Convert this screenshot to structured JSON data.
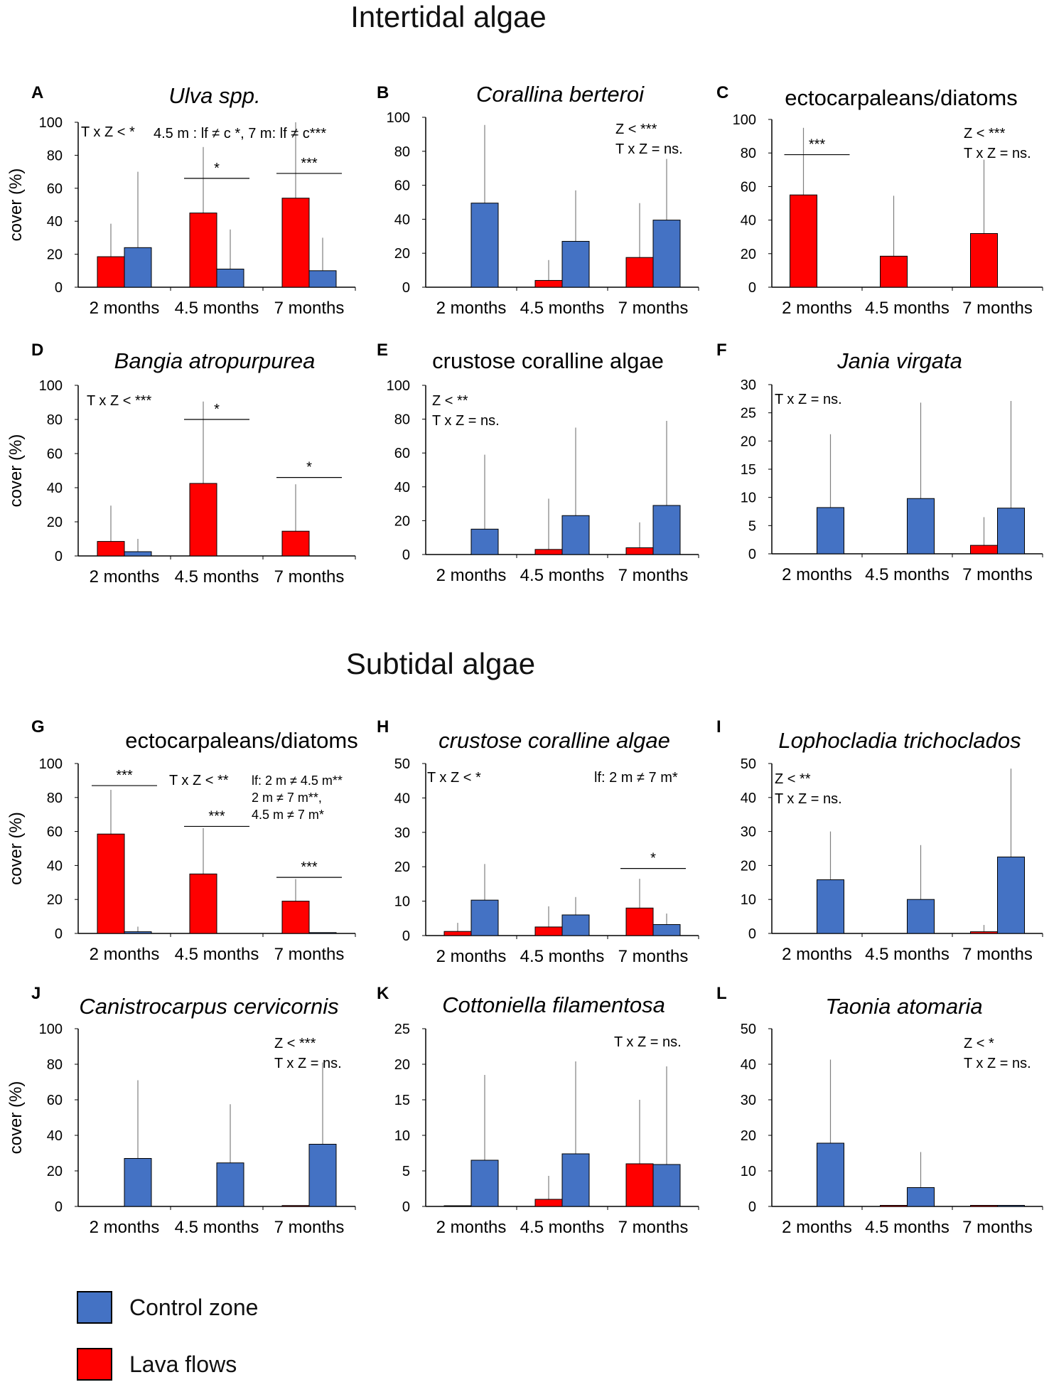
{
  "sections": {
    "intertidal": "Intertidal algae",
    "subtidal": "Subtidal algae"
  },
  "colors": {
    "control": "#4472C4",
    "lava": "#FF0000",
    "axis": "#000000",
    "errorbar": "#7f7f7f"
  },
  "legend": {
    "control_label": "Control zone",
    "lava_label": "Lava flows"
  },
  "chart_data": [
    {
      "id": "A",
      "type": "bar",
      "title": "Ulva spp.",
      "title_italic": true,
      "ylabel": "cover (%)",
      "ylim": [
        0,
        100
      ],
      "yticks": [
        0,
        20,
        40,
        60,
        80,
        100
      ],
      "categories": [
        "2 months",
        "4.5 months",
        "7 months"
      ],
      "series": [
        {
          "name": "Lava flows",
          "key": "lava",
          "values": [
            18.5,
            45,
            54
          ],
          "errors": [
            20,
            40,
            46
          ]
        },
        {
          "name": "Control zone",
          "key": "control",
          "values": [
            24,
            11,
            10
          ],
          "errors": [
            46,
            24,
            20
          ]
        }
      ],
      "annotations": [
        "T x Z < *",
        "4.5 m : lf ≠ c *, 7 m: lf ≠ c***"
      ],
      "sig_lines": [
        {
          "cat": 1,
          "label": "*",
          "y": 66
        },
        {
          "cat": 2,
          "label": "***",
          "y": 69
        }
      ]
    },
    {
      "id": "B",
      "type": "bar",
      "title": "Corallina berteroi",
      "title_italic": true,
      "ylabel": "",
      "ylim": [
        0,
        100
      ],
      "yticks": [
        0,
        20,
        40,
        60,
        80,
        100
      ],
      "categories": [
        "2 months",
        "4.5 months",
        "7 months"
      ],
      "series": [
        {
          "name": "Lava flows",
          "key": "lava",
          "values": [
            0,
            4,
            17.5
          ],
          "errors": [
            0,
            12,
            32
          ]
        },
        {
          "name": "Control zone",
          "key": "control",
          "values": [
            49.5,
            27,
            39.5
          ],
          "errors": [
            46,
            30,
            36
          ]
        }
      ],
      "annotations": [
        "Z < ***",
        "T x Z = ns."
      ],
      "sig_lines": []
    },
    {
      "id": "C",
      "type": "bar",
      "title": "ectocarpaleans/diatoms",
      "title_italic": false,
      "ylabel": "",
      "ylim": [
        0,
        100
      ],
      "yticks": [
        0,
        20,
        40,
        60,
        80,
        100
      ],
      "categories": [
        "2 months",
        "4.5 months",
        "7 months"
      ],
      "series": [
        {
          "name": "Lava flows",
          "key": "lava",
          "values": [
            55,
            18.5,
            32
          ],
          "errors": [
            40,
            36,
            44
          ]
        },
        {
          "name": "Control zone",
          "key": "control",
          "values": [
            0,
            0,
            0
          ],
          "errors": [
            0,
            0,
            0
          ]
        }
      ],
      "annotations": [
        "Z < ***",
        "T x Z = ns."
      ],
      "sig_lines": [
        {
          "cat": 0,
          "label": "***",
          "y": 79
        }
      ]
    },
    {
      "id": "D",
      "type": "bar",
      "title": "Bangia atropurpurea",
      "title_italic": true,
      "ylabel": "cover (%)",
      "ylim": [
        0,
        100
      ],
      "yticks": [
        0,
        20,
        40,
        60,
        80,
        100
      ],
      "categories": [
        "2 months",
        "4.5 months",
        "7 months"
      ],
      "series": [
        {
          "name": "Lava flows",
          "key": "lava",
          "values": [
            8.5,
            42.5,
            14.5
          ],
          "errors": [
            21,
            48,
            27.5
          ]
        },
        {
          "name": "Control zone",
          "key": "control",
          "values": [
            2.5,
            0,
            0
          ],
          "errors": [
            7.5,
            0,
            0
          ]
        }
      ],
      "annotations": [
        "T x Z < ***"
      ],
      "sig_lines": [
        {
          "cat": 1,
          "label": "*",
          "y": 80
        },
        {
          "cat": 2,
          "label": "*",
          "y": 46
        }
      ]
    },
    {
      "id": "E",
      "type": "bar",
      "title": "crustose coralline algae",
      "title_italic": false,
      "ylabel": "",
      "ylim": [
        0,
        100
      ],
      "yticks": [
        0,
        20,
        40,
        60,
        80,
        100
      ],
      "categories": [
        "2 months",
        "4.5 months",
        "7 months"
      ],
      "series": [
        {
          "name": "Lava flows",
          "key": "lava",
          "values": [
            0,
            3,
            4
          ],
          "errors": [
            0,
            30,
            15
          ]
        },
        {
          "name": "Control zone",
          "key": "control",
          "values": [
            15,
            23,
            29
          ],
          "errors": [
            44,
            52,
            50
          ]
        }
      ],
      "annotations": [
        "Z < **",
        "T x Z = ns."
      ],
      "sig_lines": []
    },
    {
      "id": "F",
      "type": "bar",
      "title": "Jania virgata",
      "title_italic": true,
      "ylabel": "",
      "ylim": [
        0,
        30
      ],
      "yticks": [
        0,
        5,
        10,
        15,
        20,
        25,
        30
      ],
      "categories": [
        "2 months",
        "4.5 months",
        "7 months"
      ],
      "series": [
        {
          "name": "Lava flows",
          "key": "lava",
          "values": [
            0,
            0,
            1.5
          ],
          "errors": [
            0,
            0,
            5
          ]
        },
        {
          "name": "Control zone",
          "key": "control",
          "values": [
            8.2,
            9.8,
            8.1
          ],
          "errors": [
            13,
            17,
            19
          ]
        }
      ],
      "annotations": [
        "T x Z = ns."
      ],
      "sig_lines": []
    },
    {
      "id": "G",
      "type": "bar",
      "title": "ectocarpaleans/diatoms",
      "title_italic": false,
      "ylabel": "cover (%)",
      "ylim": [
        0,
        100
      ],
      "yticks": [
        0,
        20,
        40,
        60,
        80,
        100
      ],
      "categories": [
        "2 months",
        "4.5 months",
        "7 months"
      ],
      "series": [
        {
          "name": "Lava flows",
          "key": "lava",
          "values": [
            58.5,
            35,
            19
          ],
          "errors": [
            26,
            27,
            13
          ]
        },
        {
          "name": "Control zone",
          "key": "control",
          "values": [
            1,
            0,
            0.5
          ],
          "errors": [
            3,
            0,
            0
          ]
        }
      ],
      "annotations": [
        "T x Z < **",
        "lf: 2 m ≠ 4.5 m**",
        "2 m ≠ 7 m**,",
        "4.5 m ≠ 7 m*"
      ],
      "sig_lines": [
        {
          "cat": 0,
          "label": "***",
          "y": 87
        },
        {
          "cat": 1,
          "label": "***",
          "y": 63
        },
        {
          "cat": 2,
          "label": "***",
          "y": 33
        }
      ]
    },
    {
      "id": "H",
      "type": "bar",
      "title": "crustose coralline algae",
      "title_italic": true,
      "ylabel": "",
      "ylim": [
        0,
        50
      ],
      "yticks": [
        0,
        10,
        20,
        30,
        40,
        50
      ],
      "categories": [
        "2 months",
        "4.5 months",
        "7 months"
      ],
      "series": [
        {
          "name": "Lava flows",
          "key": "lava",
          "values": [
            1.2,
            2.5,
            8
          ],
          "errors": [
            2.5,
            6,
            8.5
          ]
        },
        {
          "name": "Control zone",
          "key": "control",
          "values": [
            10.3,
            6,
            3.2
          ],
          "errors": [
            10.5,
            5.2,
            3.2
          ]
        }
      ],
      "annotations": [
        "T x Z < *",
        "lf: 2 m ≠ 7 m*"
      ],
      "sig_lines": [
        {
          "cat": 2,
          "label": "*",
          "y": 19.5
        }
      ]
    },
    {
      "id": "I",
      "type": "bar",
      "title": "Lophocladia trichoclados",
      "title_italic": true,
      "ylabel": "",
      "ylim": [
        0,
        50
      ],
      "yticks": [
        0,
        10,
        20,
        30,
        40,
        50
      ],
      "categories": [
        "2 months",
        "4.5 months",
        "7 months"
      ],
      "series": [
        {
          "name": "Lava flows",
          "key": "lava",
          "values": [
            0,
            0,
            0.5
          ],
          "errors": [
            0,
            0,
            2
          ]
        },
        {
          "name": "Control zone",
          "key": "control",
          "values": [
            15.8,
            10,
            22.5
          ],
          "errors": [
            14.2,
            16,
            26
          ]
        }
      ],
      "annotations": [
        "Z < **",
        "T x Z = ns."
      ],
      "sig_lines": []
    },
    {
      "id": "J",
      "type": "bar",
      "title": "Canistrocarpus cervicornis",
      "title_italic": true,
      "ylabel": "cover (%)",
      "ylim": [
        0,
        100
      ],
      "yticks": [
        0,
        20,
        40,
        60,
        80,
        100
      ],
      "categories": [
        "2 months",
        "4.5 months",
        "7 months"
      ],
      "series": [
        {
          "name": "Lava flows",
          "key": "lava",
          "values": [
            0,
            0,
            0.5
          ],
          "errors": [
            0,
            0,
            0
          ]
        },
        {
          "name": "Control zone",
          "key": "control",
          "values": [
            27,
            24.5,
            35
          ],
          "errors": [
            44,
            33,
            46
          ]
        }
      ],
      "annotations": [
        "Z < ***",
        "T x Z = ns."
      ],
      "sig_lines": []
    },
    {
      "id": "K",
      "type": "bar",
      "title": "Cottoniella filamentosa",
      "title_italic": true,
      "ylabel": "",
      "ylim": [
        0,
        25
      ],
      "yticks": [
        0,
        5,
        10,
        15,
        20,
        25
      ],
      "categories": [
        "2 months",
        "4.5 months",
        "7 months"
      ],
      "series": [
        {
          "name": "Lava flows",
          "key": "lava",
          "values": [
            0.1,
            1,
            6
          ],
          "errors": [
            0,
            3.3,
            9
          ]
        },
        {
          "name": "Control zone",
          "key": "control",
          "values": [
            6.5,
            7.4,
            5.9
          ],
          "errors": [
            12,
            13,
            13.8
          ]
        }
      ],
      "annotations": [
        "T x Z = ns."
      ],
      "sig_lines": []
    },
    {
      "id": "L",
      "type": "bar",
      "title": "Taonia atomaria",
      "title_italic": true,
      "ylabel": "",
      "ylim": [
        0,
        50
      ],
      "yticks": [
        0,
        10,
        20,
        30,
        40,
        50
      ],
      "categories": [
        "2 months",
        "4.5 months",
        "7 months"
      ],
      "series": [
        {
          "name": "Lava flows",
          "key": "lava",
          "values": [
            0,
            0.3,
            0.3
          ],
          "errors": [
            0,
            0,
            0
          ]
        },
        {
          "name": "Control zone",
          "key": "control",
          "values": [
            17.8,
            5.3,
            0.3
          ],
          "errors": [
            23.5,
            10,
            0
          ]
        }
      ],
      "annotations": [
        "Z < *",
        "T x Z = ns."
      ],
      "sig_lines": []
    }
  ]
}
